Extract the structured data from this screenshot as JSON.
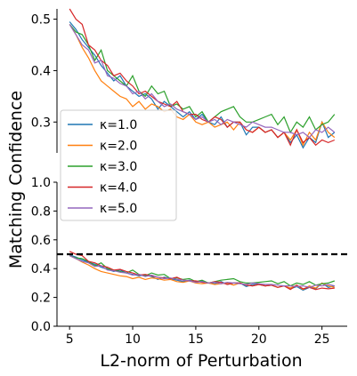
{
  "chart_data": {
    "type": "line",
    "ylabel": "Matching Confidence",
    "xlabel": "L2-norm of Perturbation",
    "legend_position": "center-left",
    "grid": false,
    "xlim": [
      4,
      27
    ],
    "x_ticks": [
      5,
      10,
      15,
      20,
      25
    ],
    "x_tick_labels": [
      "5",
      "10",
      "15",
      "20",
      "25"
    ],
    "panels": [
      {
        "name": "zoom",
        "ylim": [
          0.24,
          0.52
        ],
        "y_ticks": [
          0.3,
          0.4,
          0.5
        ],
        "y_tick_labels": [
          "0.3",
          "0.4",
          "0.5"
        ]
      },
      {
        "name": "full",
        "ylim": [
          0.0,
          1.0
        ],
        "y_ticks": [
          0.0,
          0.2,
          0.4,
          0.6,
          0.8,
          1.0
        ],
        "y_tick_labels": [
          "0.0",
          "0.2",
          "0.4",
          "0.6",
          "0.8",
          "1.0"
        ],
        "reference_line": {
          "y": 0.5,
          "style": "dashed",
          "color": "#000000"
        }
      }
    ],
    "series": [
      {
        "name": "κ=1.0",
        "color": "#1f77b4",
        "x": [
          5,
          5.5,
          6,
          6.5,
          7,
          7.5,
          8,
          8.5,
          9,
          9.5,
          10,
          10.5,
          11,
          11.5,
          12,
          12.5,
          13,
          13.5,
          14,
          14.5,
          15,
          15.5,
          16,
          16.5,
          17,
          17.5,
          18,
          18.5,
          19,
          19.5,
          20,
          20.5,
          21,
          21.5,
          22,
          22.5,
          23,
          23.5,
          24,
          24.5,
          25,
          25.5,
          26
        ],
        "y": [
          0.495,
          0.48,
          0.46,
          0.445,
          0.43,
          0.41,
          0.395,
          0.38,
          0.39,
          0.37,
          0.36,
          0.35,
          0.355,
          0.345,
          0.325,
          0.34,
          0.33,
          0.32,
          0.31,
          0.32,
          0.305,
          0.315,
          0.3,
          0.295,
          0.31,
          0.29,
          0.3,
          0.3,
          0.275,
          0.29,
          0.29,
          0.28,
          0.285,
          0.27,
          0.28,
          0.26,
          0.275,
          0.25,
          0.27,
          0.26,
          0.3,
          0.27,
          0.28
        ]
      },
      {
        "name": "κ=2.0",
        "color": "#ff7f0e",
        "x": [
          5,
          5.5,
          6,
          6.5,
          7,
          7.5,
          8,
          8.5,
          9,
          9.5,
          10,
          10.5,
          11,
          11.5,
          12,
          12.5,
          13,
          13.5,
          14,
          14.5,
          15,
          15.5,
          16,
          16.5,
          17,
          17.5,
          18,
          18.5,
          19,
          19.5,
          20,
          20.5,
          21,
          21.5,
          22,
          22.5,
          23,
          23.5,
          24,
          24.5,
          25,
          25.5,
          26
        ],
        "y": [
          0.49,
          0.47,
          0.445,
          0.425,
          0.4,
          0.38,
          0.37,
          0.36,
          0.35,
          0.345,
          0.33,
          0.34,
          0.325,
          0.335,
          0.33,
          0.32,
          0.325,
          0.31,
          0.305,
          0.315,
          0.3,
          0.295,
          0.3,
          0.29,
          0.295,
          0.3,
          0.285,
          0.3,
          0.285,
          0.28,
          0.29,
          0.28,
          0.285,
          0.27,
          0.28,
          0.265,
          0.285,
          0.255,
          0.28,
          0.265,
          0.3,
          0.28,
          0.27
        ]
      },
      {
        "name": "κ=3.0",
        "color": "#2ca02c",
        "x": [
          5,
          5.5,
          6,
          6.5,
          7,
          7.5,
          8,
          8.5,
          9,
          9.5,
          10,
          10.5,
          11,
          11.5,
          12,
          12.5,
          13,
          13.5,
          14,
          14.5,
          15,
          15.5,
          16,
          16.5,
          17,
          17.5,
          18,
          18.5,
          19,
          19.5,
          20,
          20.5,
          21,
          21.5,
          22,
          22.5,
          23,
          23.5,
          24,
          24.5,
          25,
          25.5,
          26
        ],
        "y": [
          0.49,
          0.475,
          0.47,
          0.45,
          0.42,
          0.44,
          0.4,
          0.39,
          0.38,
          0.37,
          0.39,
          0.36,
          0.35,
          0.37,
          0.355,
          0.36,
          0.33,
          0.335,
          0.325,
          0.33,
          0.31,
          0.32,
          0.3,
          0.31,
          0.32,
          0.325,
          0.33,
          0.31,
          0.3,
          0.3,
          0.305,
          0.31,
          0.315,
          0.295,
          0.31,
          0.28,
          0.3,
          0.29,
          0.31,
          0.285,
          0.295,
          0.3,
          0.315
        ]
      },
      {
        "name": "κ=4.0",
        "color": "#d62728",
        "x": [
          5,
          5.5,
          6,
          6.5,
          7,
          7.5,
          8,
          8.5,
          9,
          9.5,
          10,
          10.5,
          11,
          11.5,
          12,
          12.5,
          13,
          13.5,
          14,
          14.5,
          15,
          15.5,
          16,
          16.5,
          17,
          17.5,
          18,
          18.5,
          19,
          19.5,
          20,
          20.5,
          21,
          21.5,
          22,
          22.5,
          23,
          23.5,
          24,
          24.5,
          25,
          25.5,
          26
        ],
        "y": [
          0.52,
          0.5,
          0.49,
          0.45,
          0.44,
          0.42,
          0.41,
          0.39,
          0.395,
          0.38,
          0.37,
          0.355,
          0.36,
          0.35,
          0.34,
          0.335,
          0.33,
          0.34,
          0.32,
          0.315,
          0.315,
          0.305,
          0.3,
          0.31,
          0.305,
          0.29,
          0.3,
          0.3,
          0.285,
          0.28,
          0.29,
          0.28,
          0.285,
          0.27,
          0.28,
          0.255,
          0.285,
          0.26,
          0.27,
          0.255,
          0.265,
          0.26,
          0.265
        ]
      },
      {
        "name": "κ=5.0",
        "color": "#9467bd",
        "x": [
          5,
          5.5,
          6,
          6.5,
          7,
          7.5,
          8,
          8.5,
          9,
          9.5,
          10,
          10.5,
          11,
          11.5,
          12,
          12.5,
          13,
          13.5,
          14,
          14.5,
          15,
          15.5,
          16,
          16.5,
          17,
          17.5,
          18,
          18.5,
          19,
          19.5,
          20,
          20.5,
          21,
          21.5,
          22,
          22.5,
          23,
          23.5,
          24,
          24.5,
          25,
          25.5,
          26
        ],
        "y": [
          0.49,
          0.47,
          0.45,
          0.44,
          0.415,
          0.42,
          0.39,
          0.385,
          0.375,
          0.37,
          0.355,
          0.36,
          0.345,
          0.355,
          0.34,
          0.33,
          0.335,
          0.325,
          0.32,
          0.315,
          0.305,
          0.31,
          0.3,
          0.305,
          0.295,
          0.305,
          0.3,
          0.295,
          0.29,
          0.3,
          0.295,
          0.29,
          0.29,
          0.285,
          0.28,
          0.28,
          0.275,
          0.28,
          0.27,
          0.285,
          0.28,
          0.29,
          0.28
        ]
      }
    ]
  }
}
